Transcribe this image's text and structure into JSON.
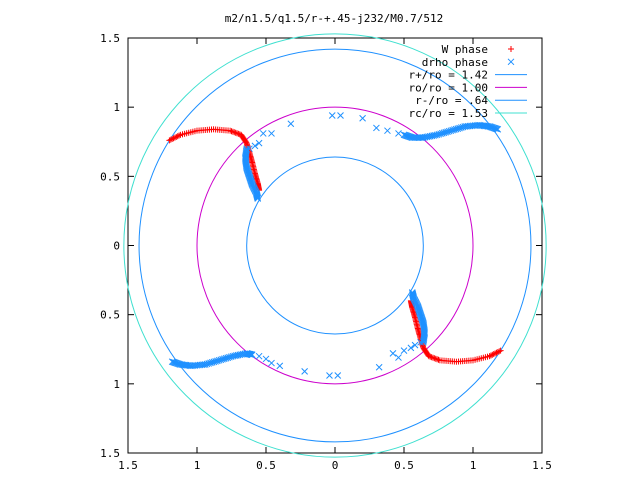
{
  "chart_data": {
    "type": "scatter",
    "title": "m2/n1.5/q1.5/r-+.45-j232/M0.7/512",
    "xlabel": "",
    "ylabel": "",
    "xlim": [
      -1.5,
      1.5
    ],
    "ylim": [
      -1.5,
      1.5
    ],
    "x_tick_values": [
      -1.5,
      -1,
      -0.5,
      0,
      0.5,
      1,
      1.5
    ],
    "x_tick_labels": [
      "1.5",
      "1",
      "0.5",
      "0",
      "0.5",
      "1",
      "1.5"
    ],
    "y_tick_values": [
      1.5,
      1,
      0.5,
      0,
      -0.5,
      -1,
      -1.5
    ],
    "y_tick_labels": [
      "1.5",
      "1",
      "0.5",
      "0",
      "0.5",
      "1",
      "1.5"
    ],
    "grid": false,
    "legend_position": "top-right",
    "series": [
      {
        "name": "W phase",
        "marker": "plus",
        "color": "#ff0000",
        "curves": [
          [
            [
              -1.2,
              0.76
            ],
            [
              -1.12,
              0.8
            ],
            [
              -1.0,
              0.83
            ],
            [
              -0.88,
              0.84
            ],
            [
              -0.76,
              0.83
            ],
            [
              -0.68,
              0.8
            ],
            [
              -0.64,
              0.74
            ],
            [
              -0.62,
              0.67
            ],
            [
              -0.6,
              0.6
            ],
            [
              -0.58,
              0.52
            ],
            [
              -0.56,
              0.45
            ],
            [
              -0.55,
              0.4
            ]
          ],
          [
            [
              1.2,
              -0.76
            ],
            [
              1.12,
              -0.8
            ],
            [
              1.0,
              -0.83
            ],
            [
              0.88,
              -0.84
            ],
            [
              0.76,
              -0.83
            ],
            [
              0.68,
              -0.8
            ],
            [
              0.64,
              -0.74
            ],
            [
              0.62,
              -0.67
            ],
            [
              0.6,
              -0.6
            ],
            [
              0.58,
              -0.52
            ],
            [
              0.56,
              -0.45
            ],
            [
              0.55,
              -0.4
            ]
          ]
        ]
      },
      {
        "name": "drho phase",
        "marker": "x",
        "color": "#1e90ff",
        "curves": [
          [
            [
              -0.64,
              0.7
            ],
            [
              -0.65,
              0.63
            ],
            [
              -0.64,
              0.56
            ],
            [
              -0.62,
              0.5
            ],
            [
              -0.6,
              0.44
            ],
            [
              -0.57,
              0.38
            ],
            [
              -0.56,
              0.34
            ]
          ],
          [
            [
              0.5,
              0.8
            ],
            [
              0.56,
              0.78
            ],
            [
              0.64,
              0.78
            ],
            [
              0.74,
              0.8
            ],
            [
              0.84,
              0.83
            ],
            [
              0.94,
              0.86
            ],
            [
              1.04,
              0.87
            ],
            [
              1.12,
              0.86
            ],
            [
              1.18,
              0.84
            ]
          ],
          [
            [
              0.56,
              -0.34
            ],
            [
              0.57,
              -0.38
            ],
            [
              0.6,
              -0.44
            ],
            [
              0.62,
              -0.5
            ],
            [
              0.64,
              -0.56
            ],
            [
              0.65,
              -0.63
            ],
            [
              0.64,
              -0.7
            ]
          ],
          [
            [
              -1.18,
              -0.84
            ],
            [
              -1.12,
              -0.86
            ],
            [
              -1.04,
              -0.87
            ],
            [
              -0.94,
              -0.86
            ],
            [
              -0.84,
              -0.83
            ],
            [
              -0.74,
              -0.8
            ],
            [
              -0.64,
              -0.78
            ],
            [
              -0.6,
              -0.79
            ]
          ]
        ],
        "points": [
          [
            -0.46,
            0.81
          ],
          [
            -0.52,
            0.81
          ],
          [
            -0.55,
            0.74
          ],
          [
            -0.58,
            0.72
          ],
          [
            -0.62,
            0.7
          ],
          [
            -0.32,
            0.88
          ],
          [
            -0.02,
            0.94
          ],
          [
            0.04,
            0.94
          ],
          [
            0.2,
            0.92
          ],
          [
            0.3,
            0.85
          ],
          [
            0.38,
            0.83
          ],
          [
            0.46,
            0.81
          ],
          [
            0.46,
            -0.81
          ],
          [
            0.42,
            -0.78
          ],
          [
            0.32,
            -0.88
          ],
          [
            0.02,
            -0.94
          ],
          [
            -0.04,
            -0.94
          ],
          [
            -0.22,
            -0.91
          ],
          [
            -0.4,
            -0.87
          ],
          [
            -0.46,
            -0.85
          ],
          [
            -0.5,
            -0.82
          ],
          [
            -0.55,
            -0.8
          ],
          [
            0.5,
            -0.76
          ],
          [
            0.55,
            -0.74
          ],
          [
            0.58,
            -0.72
          ],
          [
            0.62,
            -0.7
          ]
        ]
      },
      {
        "name": "r+/ro = 1.42",
        "type": "circle",
        "radius": 1.42,
        "color": "#1e90ff"
      },
      {
        "name": "ro/ro = 1.00",
        "type": "circle",
        "radius": 1.0,
        "color": "#cc00cc"
      },
      {
        "name": "r-/ro = .64",
        "type": "circle",
        "radius": 0.64,
        "color": "#1e90ff"
      },
      {
        "name": "rc/ro = 1.53",
        "type": "circle",
        "radius": 1.53,
        "color": "#40e0d0"
      }
    ]
  }
}
